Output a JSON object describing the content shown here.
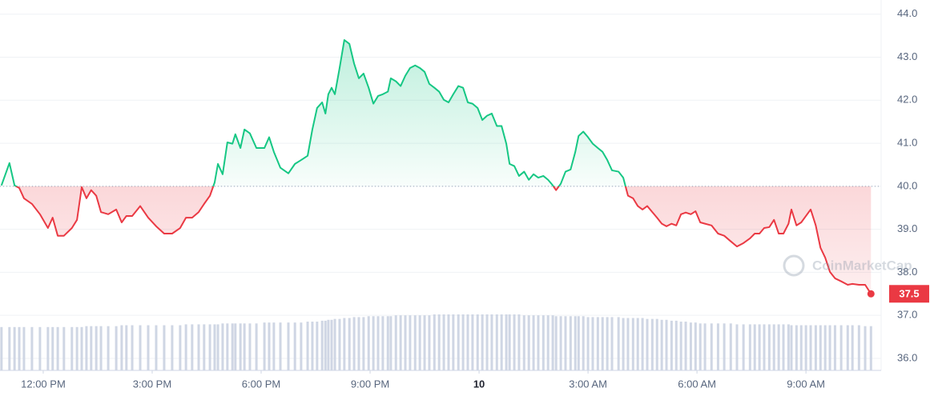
{
  "chart_data": {
    "type": "line",
    "x": [
      -1.15,
      -0.93,
      -0.79,
      -0.66,
      -0.53,
      -0.31,
      -0.09,
      0.13,
      0.26,
      0.4,
      0.57,
      0.79,
      0.93,
      1.06,
      1.19,
      1.32,
      1.46,
      1.59,
      1.79,
      2.01,
      2.16,
      2.29,
      2.45,
      2.67,
      2.89,
      3.11,
      3.33,
      3.55,
      3.77,
      3.93,
      4.1,
      4.28,
      4.43,
      4.59,
      4.72,
      4.81,
      4.94,
      5.07,
      5.21,
      5.29,
      5.43,
      5.54,
      5.69,
      5.87,
      6.09,
      6.22,
      6.35,
      6.53,
      6.75,
      6.93,
      7.1,
      7.28,
      7.41,
      7.54,
      7.68,
      7.77,
      7.85,
      7.94,
      8.03,
      8.16,
      8.29,
      8.43,
      8.56,
      8.69,
      8.82,
      8.96,
      9.09,
      9.22,
      9.35,
      9.49,
      9.57,
      9.71,
      9.84,
      9.97,
      10.1,
      10.24,
      10.37,
      10.5,
      10.63,
      10.77,
      10.9,
      11.03,
      11.16,
      11.29,
      11.43,
      11.56,
      11.69,
      11.82,
      11.96,
      12.09,
      12.22,
      12.35,
      12.49,
      12.62,
      12.75,
      12.84,
      12.97,
      13.1,
      13.24,
      13.37,
      13.5,
      13.63,
      13.77,
      13.9,
      14.03,
      14.12,
      14.25,
      14.38,
      14.52,
      14.65,
      14.74,
      14.87,
      15.0,
      15.13,
      15.27,
      15.4,
      15.53,
      15.66,
      15.84,
      15.97,
      16.1,
      16.24,
      16.37,
      16.5,
      16.63,
      16.77,
      16.9,
      17.03,
      17.16,
      17.3,
      17.43,
      17.56,
      17.69,
      17.83,
      17.96,
      18.09,
      18.22,
      18.4,
      18.58,
      18.75,
      18.93,
      19.1,
      19.28,
      19.46,
      19.59,
      19.72,
      19.85,
      19.99,
      20.12,
      20.25,
      20.38,
      20.52,
      20.6,
      20.74,
      20.87,
      21.0,
      21.13,
      21.27,
      21.4,
      21.53,
      21.66,
      21.8,
      21.97,
      22.15,
      22.28,
      22.46,
      22.63,
      22.79
    ],
    "values": [
      40.02,
      40.54,
      40.02,
      39.96,
      39.72,
      39.59,
      39.35,
      39.03,
      39.27,
      38.85,
      38.85,
      39.03,
      39.22,
      39.98,
      39.72,
      39.91,
      39.78,
      39.4,
      39.35,
      39.46,
      39.16,
      39.31,
      39.31,
      39.54,
      39.27,
      39.07,
      38.9,
      38.9,
      39.03,
      39.27,
      39.27,
      39.4,
      39.59,
      39.78,
      40.09,
      40.52,
      40.28,
      41.02,
      40.99,
      41.21,
      40.89,
      41.32,
      41.23,
      40.89,
      40.89,
      41.14,
      40.8,
      40.43,
      40.3,
      40.52,
      40.61,
      40.71,
      41.32,
      41.82,
      41.95,
      41.69,
      42.14,
      42.29,
      42.14,
      42.75,
      43.4,
      43.31,
      42.85,
      42.51,
      42.62,
      42.29,
      41.92,
      42.1,
      42.14,
      42.2,
      42.51,
      42.44,
      42.33,
      42.57,
      42.75,
      42.81,
      42.75,
      42.66,
      42.38,
      42.29,
      42.2,
      42.01,
      41.95,
      42.14,
      42.33,
      42.29,
      41.95,
      41.92,
      41.82,
      41.54,
      41.64,
      41.69,
      41.4,
      41.4,
      40.99,
      40.52,
      40.47,
      40.24,
      40.34,
      40.15,
      40.28,
      40.2,
      40.24,
      40.15,
      40.02,
      39.91,
      40.06,
      40.34,
      40.39,
      40.8,
      41.17,
      41.27,
      41.14,
      40.99,
      40.89,
      40.8,
      40.61,
      40.37,
      40.34,
      40.2,
      39.78,
      39.72,
      39.54,
      39.46,
      39.54,
      39.4,
      39.27,
      39.13,
      39.07,
      39.13,
      39.09,
      39.35,
      39.39,
      39.35,
      39.42,
      39.16,
      39.13,
      39.09,
      38.9,
      38.85,
      38.72,
      38.6,
      38.68,
      38.79,
      38.9,
      38.9,
      39.03,
      39.05,
      39.22,
      38.9,
      38.9,
      39.13,
      39.46,
      39.09,
      39.16,
      39.31,
      39.46,
      39.09,
      38.57,
      38.34,
      38.01,
      37.86,
      37.79,
      37.71,
      37.73,
      37.71,
      37.71,
      37.5
    ],
    "volume": [
      48,
      48,
      48,
      48,
      48,
      48,
      48,
      48,
      48,
      48,
      48,
      48,
      48,
      48,
      49,
      49,
      49,
      49,
      49,
      49,
      50,
      50,
      50,
      50,
      50,
      50,
      50,
      50,
      50,
      51,
      51,
      51,
      51,
      51,
      51,
      51,
      52,
      52,
      52,
      52,
      52,
      52,
      52,
      52,
      53,
      53,
      53,
      53,
      53,
      53,
      53,
      54,
      54,
      54,
      55,
      55,
      56,
      56,
      57,
      57,
      58,
      58,
      59,
      59,
      59,
      60,
      60,
      60,
      60,
      60,
      60,
      61,
      61,
      61,
      61,
      61,
      61,
      61,
      61,
      62,
      62,
      62,
      62,
      62,
      62,
      62,
      62,
      62,
      62,
      62,
      62,
      62,
      62,
      62,
      62,
      62,
      62,
      62,
      61,
      61,
      61,
      61,
      61,
      61,
      61,
      60,
      60,
      60,
      60,
      60,
      60,
      60,
      59,
      59,
      59,
      59,
      59,
      59,
      59,
      58,
      58,
      58,
      58,
      58,
      57,
      57,
      57,
      56,
      56,
      55,
      55,
      54,
      54,
      53,
      53,
      52,
      52,
      52,
      52,
      52,
      52,
      51,
      51,
      51,
      51,
      51,
      51,
      51,
      51,
      51,
      51,
      51,
      50,
      50,
      50,
      50,
      50,
      50,
      50,
      50,
      50,
      50,
      50,
      50,
      50,
      50,
      49,
      49
    ],
    "baseline": 40,
    "current_price": 37.5,
    "up_color": "#16c784",
    "down_color": "#ea3943",
    "volume_color": "#cfd6e4",
    "watermark": "CoinMarketCap",
    "xlim": [
      -1.19,
      23.07
    ],
    "ylim": [
      35.72,
      44.33
    ],
    "xticks": [
      {
        "value": 0,
        "label": "12:00 PM"
      },
      {
        "value": 3,
        "label": "3:00 PM"
      },
      {
        "value": 6,
        "label": "6:00 PM"
      },
      {
        "value": 9,
        "label": "9:00 PM"
      },
      {
        "value": 12,
        "label": "10"
      },
      {
        "value": 15,
        "label": "3:00 AM"
      },
      {
        "value": 18,
        "label": "6:00 AM"
      },
      {
        "value": 21,
        "label": "9:00 AM"
      }
    ],
    "yticks": [
      {
        "value": 36,
        "label": "36.0"
      },
      {
        "value": 37,
        "label": "37.0"
      },
      {
        "value": 38,
        "label": "38.0"
      },
      {
        "value": 39,
        "label": "39.0"
      },
      {
        "value": 40,
        "label": "40.0"
      },
      {
        "value": 41,
        "label": "41.0"
      },
      {
        "value": 42,
        "label": "42.0"
      },
      {
        "value": 43,
        "label": "43.0"
      },
      {
        "value": 44,
        "label": "44.0"
      }
    ],
    "grid": true
  }
}
